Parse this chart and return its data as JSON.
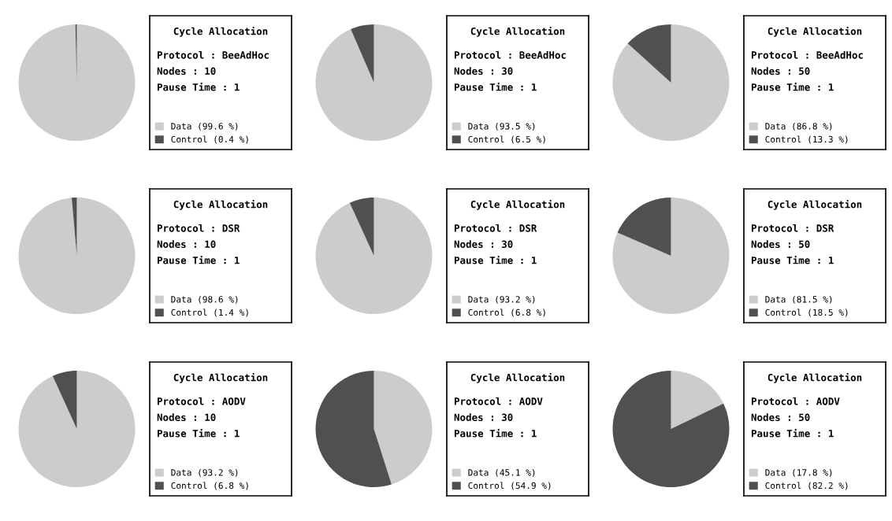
{
  "chart_data": [
    {
      "type": "pie",
      "title": "Cycle Allocation",
      "annotations": [
        "Protocol : BeeAdHoc",
        "Nodes : 10",
        "Pause Time : 1"
      ],
      "categories": [
        "Data",
        "Control"
      ],
      "values": [
        99.6,
        0.4
      ],
      "value_labels": [
        "(99.6 %)",
        "(0.4 %)"
      ],
      "colors": [
        "#cccccc",
        "#505050"
      ],
      "legend": "right"
    },
    {
      "type": "pie",
      "title": "Cycle Allocation",
      "annotations": [
        "Protocol : BeeAdHoc",
        "Nodes : 30",
        "Pause Time : 1"
      ],
      "categories": [
        "Data",
        "Control"
      ],
      "values": [
        93.5,
        6.5
      ],
      "value_labels": [
        "(93.5 %)",
        "(6.5 %)"
      ],
      "colors": [
        "#cccccc",
        "#505050"
      ],
      "legend": "right"
    },
    {
      "type": "pie",
      "title": "Cycle Allocation",
      "annotations": [
        "Protocol : BeeAdHoc",
        "Nodes : 50",
        "Pause Time : 1"
      ],
      "categories": [
        "Data",
        "Control"
      ],
      "values": [
        86.8,
        13.3
      ],
      "value_labels": [
        "(86.8 %)",
        "(13.3 %)"
      ],
      "colors": [
        "#cccccc",
        "#505050"
      ],
      "legend": "right"
    },
    {
      "type": "pie",
      "title": "Cycle Allocation",
      "annotations": [
        "Protocol : DSR",
        "Nodes : 10",
        "Pause Time : 1"
      ],
      "categories": [
        "Data",
        "Control"
      ],
      "values": [
        98.6,
        1.4
      ],
      "value_labels": [
        "(98.6 %)",
        "(1.4 %)"
      ],
      "colors": [
        "#cccccc",
        "#505050"
      ],
      "legend": "right"
    },
    {
      "type": "pie",
      "title": "Cycle Allocation",
      "annotations": [
        "Protocol : DSR",
        "Nodes : 30",
        "Pause Time : 1"
      ],
      "categories": [
        "Data",
        "Control"
      ],
      "values": [
        93.2,
        6.8
      ],
      "value_labels": [
        "(93.2 %)",
        "(6.8 %)"
      ],
      "colors": [
        "#cccccc",
        "#505050"
      ],
      "legend": "right"
    },
    {
      "type": "pie",
      "title": "Cycle Allocation",
      "annotations": [
        "Protocol : DSR",
        "Nodes : 50",
        "Pause Time : 1"
      ],
      "categories": [
        "Data",
        "Control"
      ],
      "values": [
        81.5,
        18.5
      ],
      "value_labels": [
        "(81.5 %)",
        "(18.5 %)"
      ],
      "colors": [
        "#cccccc",
        "#505050"
      ],
      "legend": "right"
    },
    {
      "type": "pie",
      "title": "Cycle Allocation",
      "annotations": [
        "Protocol : AODV",
        "Nodes : 10",
        "Pause Time : 1"
      ],
      "categories": [
        "Data",
        "Control"
      ],
      "values": [
        93.2,
        6.8
      ],
      "value_labels": [
        "(93.2 %)",
        "(6.8 %)"
      ],
      "colors": [
        "#cccccc",
        "#505050"
      ],
      "legend": "right"
    },
    {
      "type": "pie",
      "title": "Cycle Allocation",
      "annotations": [
        "Protocol : AODV",
        "Nodes : 30",
        "Pause Time : 1"
      ],
      "categories": [
        "Data",
        "Control"
      ],
      "values": [
        45.1,
        54.9
      ],
      "value_labels": [
        "(45.1 %)",
        "(54.9 %)"
      ],
      "colors": [
        "#cccccc",
        "#505050"
      ],
      "legend": "right"
    },
    {
      "type": "pie",
      "title": "Cycle Allocation",
      "annotations": [
        "Protocol : AODV",
        "Nodes : 50",
        "Pause Time : 1"
      ],
      "categories": [
        "Data",
        "Control"
      ],
      "values": [
        17.8,
        82.2
      ],
      "value_labels": [
        "(17.8 %)",
        "(82.2 %)"
      ],
      "colors": [
        "#cccccc",
        "#505050"
      ],
      "legend": "right"
    }
  ]
}
